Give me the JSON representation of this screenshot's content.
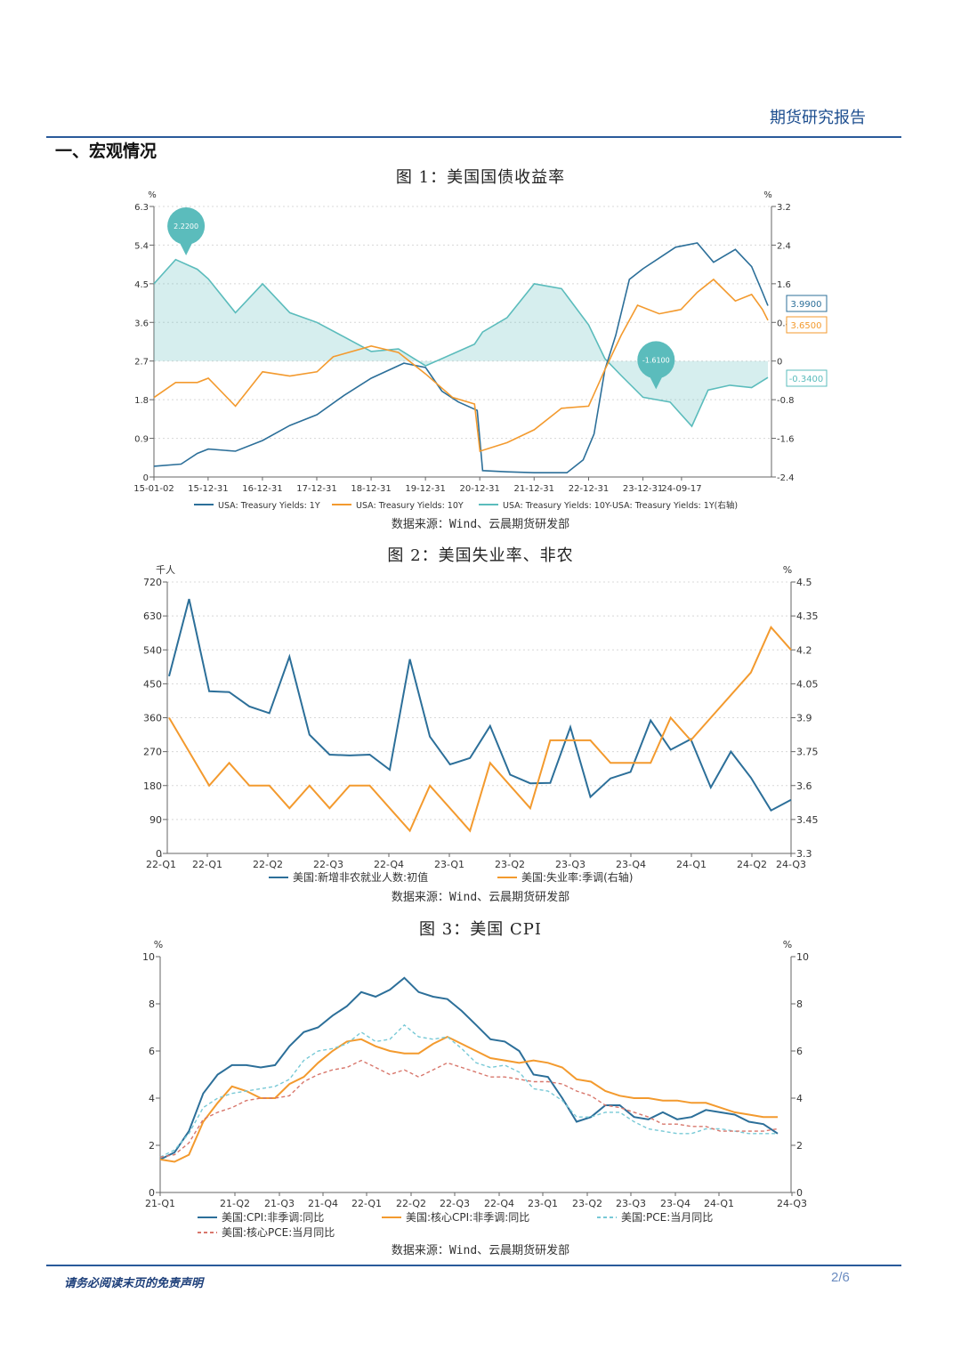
{
  "header": {
    "title": "期货研究报告"
  },
  "section": {
    "title": "一、宏观情况"
  },
  "footer": {
    "note": "请务必阅读末页的免责声明",
    "page": "2/6"
  },
  "colors": {
    "dark_blue": "#2c6f99",
    "orange": "#f39a2e",
    "teal": "#5bbcbc",
    "red_dash": "#d8776c",
    "pce_dash": "#78c9d6",
    "brand": "#2a5a9a"
  },
  "chart_data": [
    {
      "type": "line",
      "title": "图 1：美国国债收益率",
      "source": "数据来源：Wind、云晨期货研发部",
      "left_unit": "%",
      "right_unit": "%",
      "left_ticks": [
        "0",
        "0.9",
        "1.8",
        "2.7",
        "3.6",
        "4.5",
        "5.4",
        "6.3"
      ],
      "right_ticks": [
        "-2.4",
        "-1.6",
        "-0.8",
        "0",
        "0.8",
        "1.6",
        "2.4",
        "3.2"
      ],
      "ylim_left": [
        0,
        6.3
      ],
      "ylim_right": [
        -2.4,
        3.2
      ],
      "x_ticks": [
        "15-01-02",
        "15-12-31",
        "16-12-31",
        "17-12-31",
        "18-12-31",
        "19-12-31",
        "20-12-31",
        "21-12-31",
        "22-12-31",
        "23-12-31",
        "24-09-17"
      ],
      "callouts": [
        {
          "text": "2.2200",
          "series": 2,
          "t": 0.1
        },
        {
          "text": "-1.6100",
          "series": 2,
          "t": 8.75
        }
      ],
      "end_labels": [
        "3.9900",
        "3.6500",
        "-0.3400"
      ],
      "series": [
        {
          "name": "USA: Treasury Yields: 1Y",
          "axis": "left",
          "style": "line",
          "points": [
            [
              0,
              0.25
            ],
            [
              0.5,
              0.3
            ],
            [
              0.8,
              0.55
            ],
            [
              1,
              0.65
            ],
            [
              1.5,
              0.6
            ],
            [
              2,
              0.85
            ],
            [
              2.5,
              1.2
            ],
            [
              3,
              1.45
            ],
            [
              3.5,
              1.9
            ],
            [
              4,
              2.3
            ],
            [
              4.6,
              2.65
            ],
            [
              5,
              2.55
            ],
            [
              5.3,
              2.0
            ],
            [
              5.6,
              1.75
            ],
            [
              5.95,
              1.55
            ],
            [
              6.05,
              0.15
            ],
            [
              6.5,
              0.12
            ],
            [
              7,
              0.1
            ],
            [
              7.6,
              0.1
            ],
            [
              7.9,
              0.4
            ],
            [
              8.1,
              1.0
            ],
            [
              8.3,
              2.5
            ],
            [
              8.5,
              3.3
            ],
            [
              8.75,
              4.6
            ],
            [
              9,
              4.85
            ],
            [
              9.3,
              5.1
            ],
            [
              9.6,
              5.35
            ],
            [
              10,
              5.45
            ],
            [
              10.3,
              5.0
            ],
            [
              10.7,
              5.3
            ],
            [
              11.0,
              4.9
            ],
            [
              11.2,
              4.3
            ],
            [
              11.3,
              3.99
            ]
          ]
        },
        {
          "name": "USA: Treasury Yields: 10Y",
          "axis": "left",
          "style": "line",
          "points": [
            [
              0,
              1.85
            ],
            [
              0.4,
              2.2
            ],
            [
              0.8,
              2.2
            ],
            [
              1,
              2.3
            ],
            [
              1.5,
              1.65
            ],
            [
              2,
              2.45
            ],
            [
              2.5,
              2.35
            ],
            [
              3,
              2.45
            ],
            [
              3.3,
              2.8
            ],
            [
              4,
              3.05
            ],
            [
              4.5,
              2.9
            ],
            [
              5,
              2.4
            ],
            [
              5.5,
              1.85
            ],
            [
              5.9,
              1.7
            ],
            [
              6.0,
              0.6
            ],
            [
              6.5,
              0.8
            ],
            [
              7,
              1.1
            ],
            [
              7.5,
              1.6
            ],
            [
              8,
              1.65
            ],
            [
              8.3,
              2.5
            ],
            [
              8.6,
              3.3
            ],
            [
              8.9,
              4.0
            ],
            [
              9.3,
              3.8
            ],
            [
              9.7,
              3.9
            ],
            [
              10.0,
              4.3
            ],
            [
              10.3,
              4.6
            ],
            [
              10.7,
              4.1
            ],
            [
              11.0,
              4.25
            ],
            [
              11.2,
              3.9
            ],
            [
              11.3,
              3.65
            ]
          ]
        },
        {
          "name": "USA: Treasury Yields: 10Y-USA: Treasury Yields: 1Y(右轴)",
          "axis": "right",
          "style": "area",
          "points": [
            [
              0,
              1.6
            ],
            [
              0.4,
              2.1
            ],
            [
              0.8,
              1.9
            ],
            [
              1.0,
              1.7
            ],
            [
              1.5,
              1.0
            ],
            [
              2,
              1.6
            ],
            [
              2.5,
              1.0
            ],
            [
              3,
              0.8
            ],
            [
              3.5,
              0.5
            ],
            [
              4,
              0.2
            ],
            [
              4.5,
              0.25
            ],
            [
              5,
              -0.1
            ],
            [
              5.5,
              0.15
            ],
            [
              5.9,
              0.35
            ],
            [
              6.05,
              0.6
            ],
            [
              6.5,
              0.9
            ],
            [
              7,
              1.6
            ],
            [
              7.5,
              1.5
            ],
            [
              8,
              0.75
            ],
            [
              8.3,
              0.05
            ],
            [
              8.6,
              -0.3
            ],
            [
              9,
              -0.75
            ],
            [
              9.5,
              -0.85
            ],
            [
              9.9,
              -1.35
            ],
            [
              10.2,
              -0.6
            ],
            [
              10.6,
              -0.5
            ],
            [
              11.0,
              -0.55
            ],
            [
              11.3,
              -0.34
            ]
          ]
        }
      ]
    },
    {
      "type": "line",
      "title": "图 2：美国失业率、非农",
      "source": "数据来源：Wind、云晨期货研发部",
      "left_unit": "千人",
      "right_unit": "%",
      "left_ticks": [
        "0",
        "90",
        "180",
        "270",
        "360",
        "450",
        "540",
        "630",
        "720"
      ],
      "right_ticks": [
        "3.3",
        "3.45",
        "3.6",
        "3.75",
        "3.9",
        "4.05",
        "4.2",
        "4.35",
        "4.5"
      ],
      "ylim_left": [
        0,
        720
      ],
      "ylim_right": [
        3.3,
        4.5
      ],
      "x_ticks": [
        "22-Q1",
        "22-Q1",
        "22-Q2",
        "22-Q3",
        "22-Q4",
        "23-Q1",
        "23-Q2",
        "23-Q3",
        "23-Q4",
        "24-Q1",
        "24-Q2",
        "24-Q3"
      ],
      "series": [
        {
          "name": "美国:新增非农就业人数:初值",
          "axis": "left",
          "values": [
            470,
            675,
            430,
            428,
            390,
            372,
            522,
            315,
            262,
            260,
            262,
            222,
            515,
            310,
            236,
            253,
            338,
            209,
            186,
            187,
            335,
            150,
            199,
            216,
            353,
            275,
            303,
            175,
            270,
            201,
            114,
            142
          ]
        },
        {
          "name": "美国:失业率:季调(右轴)",
          "axis": "right",
          "values": [
            3.9,
            3.75,
            3.6,
            3.7,
            3.6,
            3.6,
            3.5,
            3.6,
            3.5,
            3.6,
            3.6,
            3.5,
            3.4,
            3.6,
            3.5,
            3.4,
            3.7,
            3.6,
            3.5,
            3.8,
            3.8,
            3.8,
            3.7,
            3.7,
            3.7,
            3.9,
            3.8,
            3.9,
            4.0,
            4.1,
            4.3,
            4.2
          ]
        }
      ]
    },
    {
      "type": "line",
      "title": "图 3：美国 CPI",
      "source": "数据来源：Wind、云晨期货研发部",
      "left_unit": "%",
      "right_unit": "%",
      "left_ticks": [
        "0",
        "2",
        "4",
        "6",
        "8",
        "10"
      ],
      "right_ticks": [
        "0",
        "2",
        "4",
        "6",
        "8",
        "10"
      ],
      "ylim_left": [
        0,
        10
      ],
      "ylim_right": [
        0,
        10
      ],
      "x_ticks": [
        "21-Q1",
        "21-Q2",
        "21-Q3",
        "21-Q4",
        "22-Q1",
        "22-Q2",
        "22-Q3",
        "22-Q4",
        "23-Q1",
        "23-Q2",
        "23-Q3",
        "23-Q4",
        "24-Q1",
        "24-Q3"
      ],
      "series": [
        {
          "name": "美国:CPI:非季调:同比",
          "dash": false,
          "values": [
            1.4,
            1.7,
            2.6,
            4.2,
            5.0,
            5.4,
            5.4,
            5.3,
            5.4,
            6.2,
            6.8,
            7.0,
            7.5,
            7.9,
            8.5,
            8.3,
            8.6,
            9.1,
            8.5,
            8.3,
            8.2,
            7.7,
            7.1,
            6.5,
            6.4,
            6.0,
            5.0,
            4.9,
            4.0,
            3.0,
            3.2,
            3.7,
            3.7,
            3.2,
            3.1,
            3.4,
            3.1,
            3.2,
            3.5,
            3.4,
            3.3,
            3.0,
            2.9,
            2.5
          ]
        },
        {
          "name": "美国:核心CPI:非季调:同比",
          "dash": false,
          "values": [
            1.4,
            1.3,
            1.6,
            3.0,
            3.8,
            4.5,
            4.3,
            4.0,
            4.0,
            4.6,
            4.9,
            5.5,
            6.0,
            6.4,
            6.5,
            6.2,
            6.0,
            5.9,
            5.9,
            6.3,
            6.6,
            6.3,
            6.0,
            5.7,
            5.6,
            5.5,
            5.6,
            5.5,
            5.3,
            4.8,
            4.7,
            4.3,
            4.1,
            4.0,
            4.0,
            3.9,
            3.9,
            3.8,
            3.8,
            3.6,
            3.4,
            3.3,
            3.2,
            3.2
          ]
        },
        {
          "name": "美国:PCE:当月同比",
          "dash": true,
          "values": [
            1.5,
            1.8,
            2.5,
            3.6,
            4.0,
            4.2,
            4.3,
            4.4,
            4.5,
            4.8,
            5.6,
            6.0,
            6.1,
            6.3,
            6.8,
            6.4,
            6.5,
            7.1,
            6.6,
            6.5,
            6.6,
            6.1,
            5.5,
            5.3,
            5.4,
            5.1,
            4.4,
            4.3,
            3.9,
            3.2,
            3.2,
            3.4,
            3.4,
            3.0,
            2.7,
            2.6,
            2.5,
            2.5,
            2.7,
            2.7,
            2.6,
            2.5,
            2.5,
            2.5
          ]
        },
        {
          "name": "美国:核心PCE:当月同比",
          "dash": true,
          "values": [
            1.5,
            1.6,
            2.1,
            3.1,
            3.4,
            3.6,
            3.9,
            4.0,
            4.0,
            4.1,
            4.7,
            5.0,
            5.2,
            5.3,
            5.6,
            5.3,
            5.0,
            5.2,
            4.9,
            5.2,
            5.5,
            5.3,
            5.1,
            4.9,
            4.9,
            4.8,
            4.7,
            4.7,
            4.6,
            4.3,
            4.1,
            3.7,
            3.6,
            3.4,
            3.2,
            2.9,
            2.9,
            2.8,
            2.8,
            2.6,
            2.6,
            2.6,
            2.6,
            2.7
          ]
        }
      ]
    }
  ]
}
